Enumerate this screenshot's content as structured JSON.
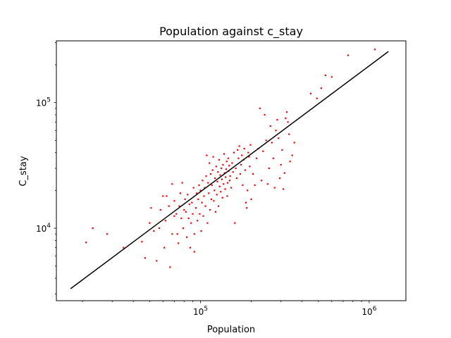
{
  "chart_data": {
    "type": "scatter",
    "title": "Population against c_stay",
    "xlabel": "Population",
    "ylabel": "C_stay",
    "xscale": "log",
    "yscale": "log",
    "xlim": [
      14000,
      1650000
    ],
    "ylim": [
      2650,
      310000
    ],
    "x_ticks": [
      {
        "base": "10",
        "exp": "5",
        "value": 100000
      },
      {
        "base": "10",
        "exp": "6",
        "value": 1000000
      }
    ],
    "y_ticks": [
      {
        "base": "10",
        "exp": "4",
        "value": 10000
      },
      {
        "base": "10",
        "exp": "5",
        "value": 100000
      }
    ],
    "grid": false,
    "legend": "none",
    "series": [
      {
        "marker_color": "#ff0000",
        "points": [
          [
            21000,
            7700
          ],
          [
            23000,
            10000
          ],
          [
            28000,
            9000
          ],
          [
            35000,
            7000
          ],
          [
            45000,
            7800
          ],
          [
            47000,
            5800
          ],
          [
            50000,
            11000
          ],
          [
            51000,
            14500
          ],
          [
            53000,
            9500
          ],
          [
            55000,
            5500
          ],
          [
            57000,
            10000
          ],
          [
            58000,
            14000
          ],
          [
            60000,
            18000
          ],
          [
            61000,
            7000
          ],
          [
            62000,
            11500
          ],
          [
            63000,
            18000
          ],
          [
            65000,
            15000
          ],
          [
            66000,
            4900
          ],
          [
            68000,
            9000
          ],
          [
            68000,
            22500
          ],
          [
            70000,
            12500
          ],
          [
            70000,
            16500
          ],
          [
            72000,
            13000
          ],
          [
            73000,
            9000
          ],
          [
            74000,
            7600
          ],
          [
            75000,
            15000
          ],
          [
            76000,
            19000
          ],
          [
            77000,
            12000
          ],
          [
            78000,
            23000
          ],
          [
            79000,
            10000
          ],
          [
            80000,
            14000
          ],
          [
            81000,
            17000
          ],
          [
            82000,
            13500
          ],
          [
            83000,
            8500
          ],
          [
            84000,
            18500
          ],
          [
            85000,
            12000
          ],
          [
            86000,
            15500
          ],
          [
            87000,
            7000
          ],
          [
            88000,
            11000
          ],
          [
            89000,
            16000
          ],
          [
            90000,
            13000
          ],
          [
            91000,
            21000
          ],
          [
            92000,
            9000
          ],
          [
            92000,
            6500
          ],
          [
            94000,
            14500
          ],
          [
            95000,
            19000
          ],
          [
            96000,
            11500
          ],
          [
            97000,
            17000
          ],
          [
            98000,
            22000
          ],
          [
            99000,
            13000
          ],
          [
            100000,
            20000
          ],
          [
            101000,
            9500
          ],
          [
            102000,
            16000
          ],
          [
            103000,
            24000
          ],
          [
            104000,
            12500
          ],
          [
            105000,
            18000
          ],
          [
            106000,
            21000
          ],
          [
            107000,
            15000
          ],
          [
            108000,
            26000
          ],
          [
            109000,
            38000
          ],
          [
            110000,
            11000
          ],
          [
            111000,
            23000
          ],
          [
            112000,
            19000
          ],
          [
            113000,
            33000
          ],
          [
            114000,
            14000
          ],
          [
            115000,
            27000
          ],
          [
            116000,
            17000
          ],
          [
            117000,
            22000
          ],
          [
            118000,
            29000
          ],
          [
            119000,
            37000
          ],
          [
            120000,
            16500
          ],
          [
            121000,
            20000
          ],
          [
            122000,
            25000
          ],
          [
            123000,
            13500
          ],
          [
            124000,
            31000
          ],
          [
            125000,
            18500
          ],
          [
            126000,
            23500
          ],
          [
            127000,
            28000
          ],
          [
            128000,
            15000
          ],
          [
            129000,
            35000
          ],
          [
            130000,
            21500
          ],
          [
            131000,
            26500
          ],
          [
            132000,
            19500
          ],
          [
            133000,
            30000
          ],
          [
            134000,
            24500
          ],
          [
            135000,
            17500
          ],
          [
            136000,
            32000
          ],
          [
            137000,
            22500
          ],
          [
            138000,
            39000
          ],
          [
            139000,
            27500
          ],
          [
            140000,
            20500
          ],
          [
            141000,
            25500
          ],
          [
            142000,
            29500
          ],
          [
            143000,
            34000
          ],
          [
            144000,
            18000
          ],
          [
            145000,
            23000
          ],
          [
            146000,
            36000
          ],
          [
            147000,
            28500
          ],
          [
            148000,
            31500
          ],
          [
            149000,
            24000
          ],
          [
            150000,
            26000
          ],
          [
            152000,
            21000
          ],
          [
            154000,
            33000
          ],
          [
            156000,
            28000
          ],
          [
            158000,
            40000
          ],
          [
            160000,
            11000
          ],
          [
            162000,
            30000
          ],
          [
            164000,
            25000
          ],
          [
            166000,
            42000
          ],
          [
            168000,
            36000
          ],
          [
            170000,
            45000
          ],
          [
            172000,
            27000
          ],
          [
            174000,
            32000
          ],
          [
            176000,
            38000
          ],
          [
            178000,
            22000
          ],
          [
            180000,
            35000
          ],
          [
            182000,
            43000
          ],
          [
            184000,
            29000
          ],
          [
            186000,
            16000
          ],
          [
            188000,
            14500
          ],
          [
            190000,
            20000
          ],
          [
            192000,
            40000
          ],
          [
            194000,
            37000
          ],
          [
            196000,
            31000
          ],
          [
            198000,
            46000
          ],
          [
            200000,
            17000
          ],
          [
            205000,
            27000
          ],
          [
            210000,
            22000
          ],
          [
            215000,
            36000
          ],
          [
            220000,
            43000
          ],
          [
            225000,
            90000
          ],
          [
            230000,
            24000
          ],
          [
            235000,
            41000
          ],
          [
            240000,
            80000
          ],
          [
            245000,
            50000
          ],
          [
            250000,
            22500
          ],
          [
            255000,
            30000
          ],
          [
            260000,
            65000
          ],
          [
            265000,
            48000
          ],
          [
            270000,
            36000
          ],
          [
            275000,
            21000
          ],
          [
            280000,
            60000
          ],
          [
            285000,
            73000
          ],
          [
            290000,
            52000
          ],
          [
            295000,
            25000
          ],
          [
            300000,
            32000
          ],
          [
            305000,
            42000
          ],
          [
            310000,
            20500
          ],
          [
            315000,
            27500
          ],
          [
            320000,
            75000
          ],
          [
            325000,
            84000
          ],
          [
            330000,
            70000
          ],
          [
            335000,
            56000
          ],
          [
            340000,
            34000
          ],
          [
            350000,
            38000
          ],
          [
            360000,
            48000
          ],
          [
            450000,
            118000
          ],
          [
            490000,
            108000
          ],
          [
            520000,
            130000
          ],
          [
            550000,
            165000
          ],
          [
            600000,
            160000
          ],
          [
            750000,
            238000
          ],
          [
            1080000,
            265000
          ]
        ]
      },
      {
        "type": "line",
        "line_color": "#000000",
        "points": [
          [
            17000,
            3300
          ],
          [
            1300000,
            255000
          ]
        ]
      }
    ]
  }
}
